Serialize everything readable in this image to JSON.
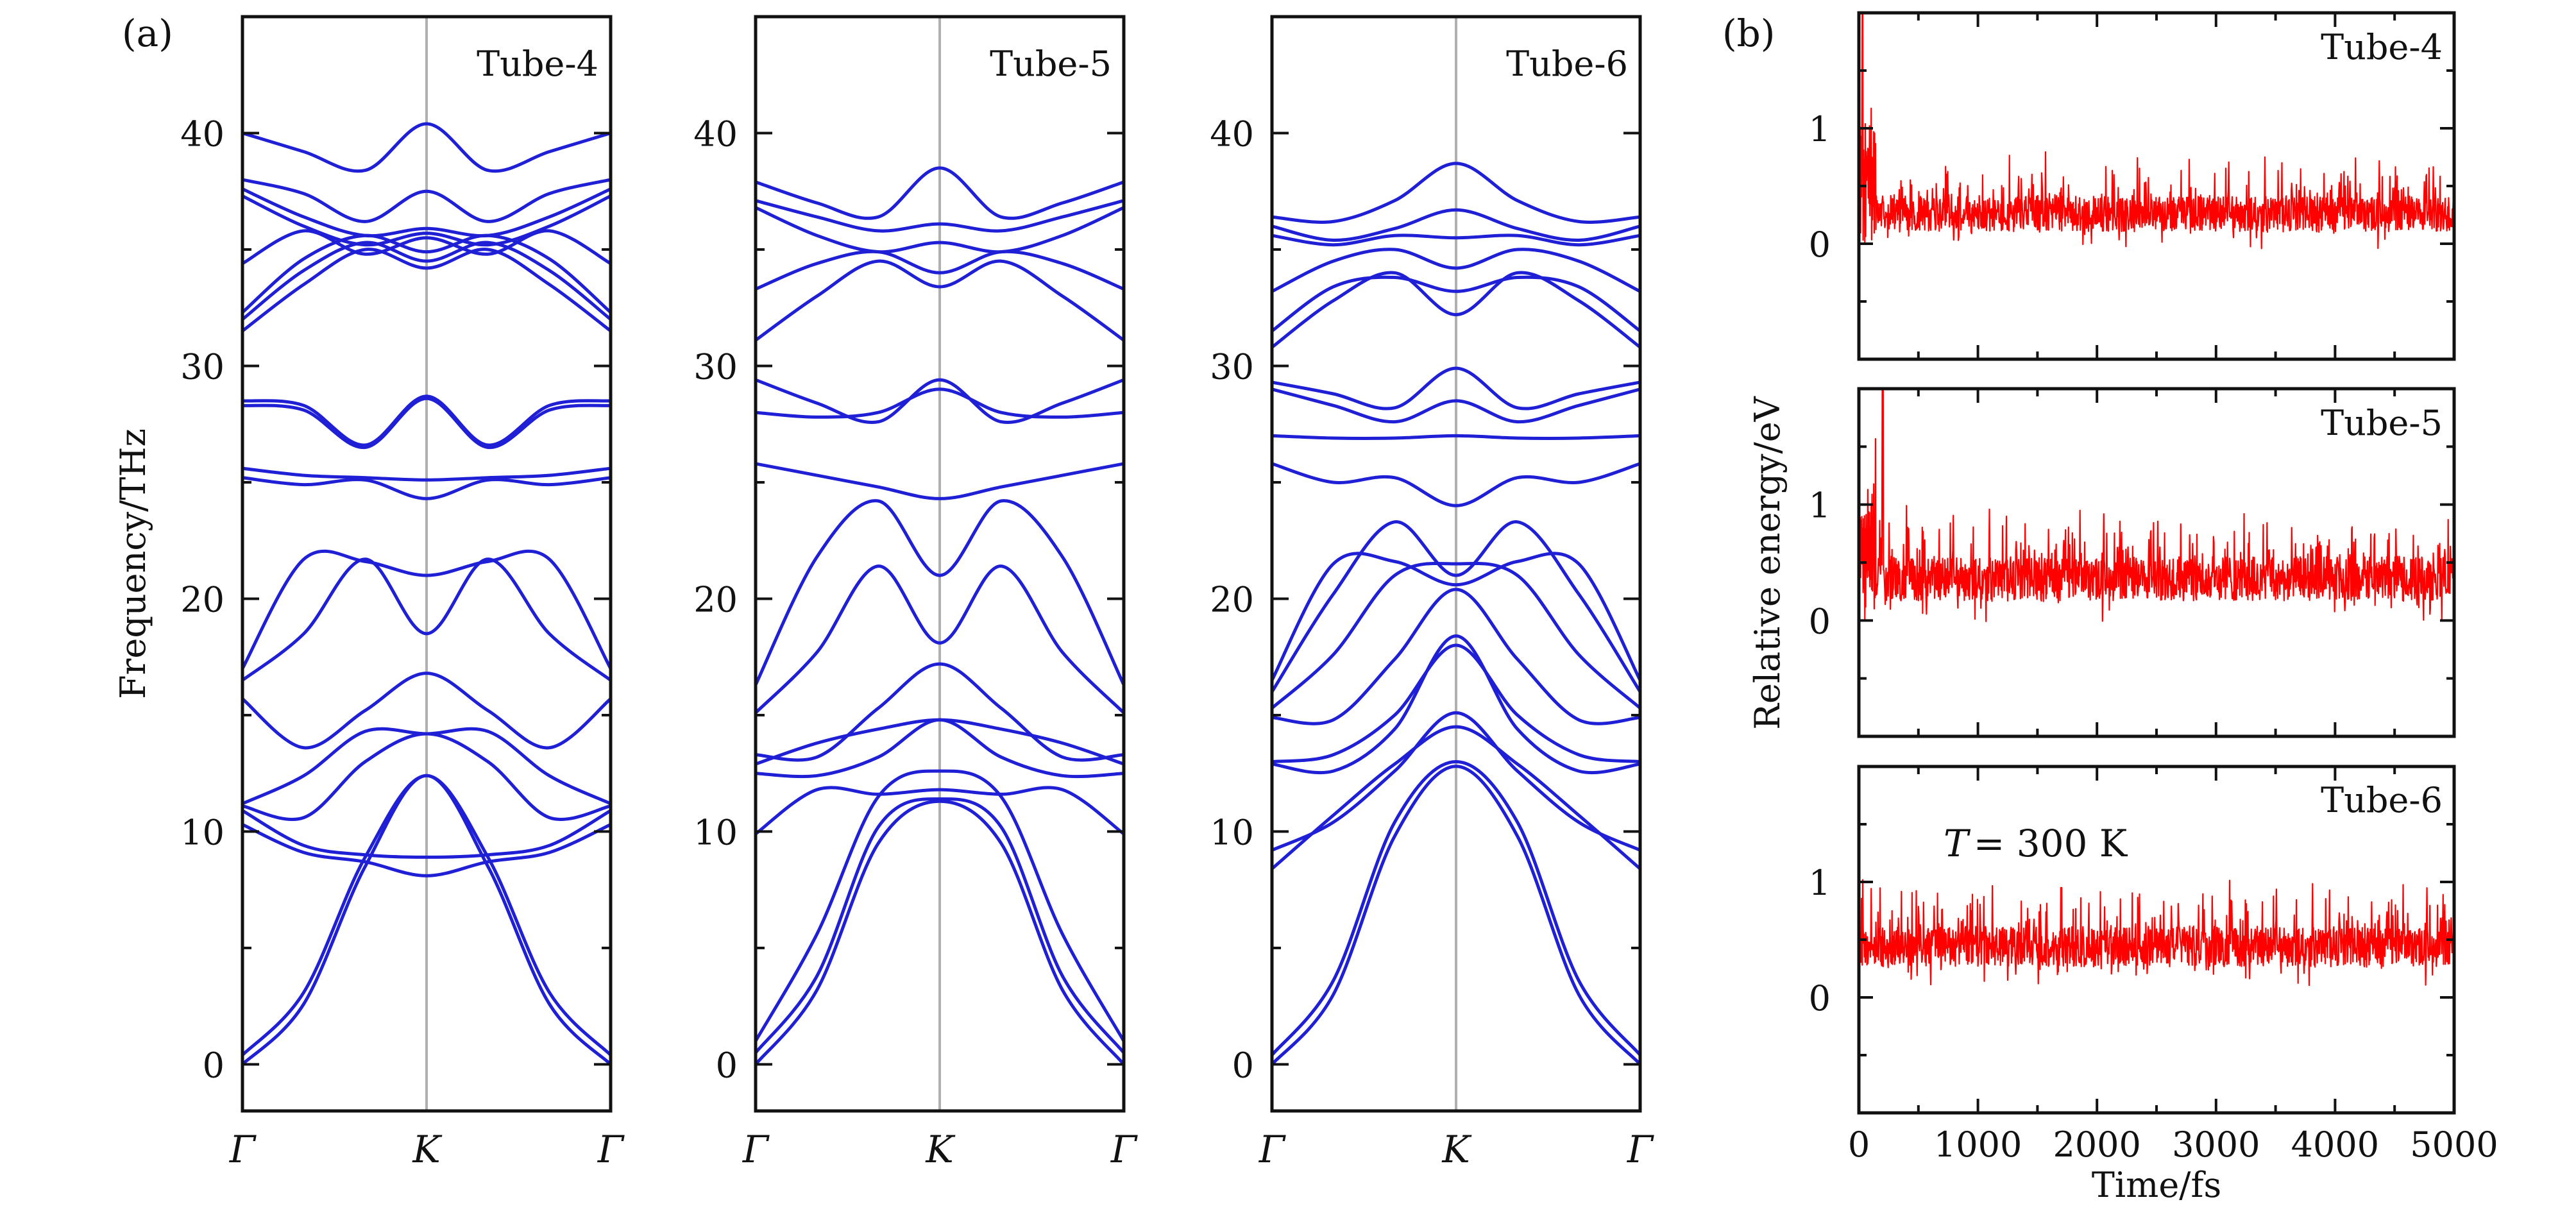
{
  "figure": {
    "panel_a_label": "(a)",
    "panel_b_label": "(b)"
  },
  "colors": {
    "band": "#1f1fd6",
    "energy": "#ff0000",
    "k_marker_line": "#b0b0b0",
    "axis": "#111111"
  },
  "chart_data": [
    {
      "type": "line",
      "id": "tube-4-bands",
      "title": "Tube-4",
      "ylabel": "Frequency/THz",
      "x_tick_labels": [
        "Γ",
        "K",
        "Γ"
      ],
      "ylim": [
        -2,
        45
      ],
      "y_ticks": [
        0,
        10,
        20,
        30,
        40
      ],
      "bands": [
        [
          0.0,
          2.6,
          8.5,
          12.4,
          8.5,
          2.6,
          0.0
        ],
        [
          0.4,
          3.1,
          8.9,
          12.4,
          8.9,
          3.1,
          0.4
        ],
        [
          10.3,
          9.1,
          8.7,
          8.1,
          8.7,
          9.1,
          10.3
        ],
        [
          10.9,
          9.4,
          9.0,
          8.9,
          9.0,
          9.4,
          10.9
        ],
        [
          11.1,
          10.6,
          13.0,
          14.2,
          13.0,
          10.6,
          11.1
        ],
        [
          11.2,
          12.4,
          14.3,
          14.2,
          14.3,
          12.4,
          11.2
        ],
        [
          15.7,
          13.6,
          15.2,
          16.8,
          15.2,
          13.6,
          15.7
        ],
        [
          16.5,
          18.5,
          21.7,
          18.5,
          21.7,
          18.5,
          16.5
        ],
        [
          17.0,
          21.7,
          21.6,
          21.0,
          21.6,
          21.7,
          17.0
        ],
        [
          25.2,
          24.9,
          25.1,
          24.3,
          25.1,
          24.9,
          25.2
        ],
        [
          25.6,
          25.3,
          25.2,
          25.1,
          25.2,
          25.3,
          25.6
        ],
        [
          28.3,
          28.1,
          26.5,
          28.6,
          26.5,
          28.1,
          28.3
        ],
        [
          28.5,
          28.3,
          26.6,
          28.7,
          26.6,
          28.3,
          28.5
        ],
        [
          31.5,
          33.5,
          35.0,
          34.2,
          35.0,
          33.5,
          31.5
        ],
        [
          32.0,
          34.1,
          35.3,
          34.5,
          35.3,
          34.1,
          32.0
        ],
        [
          32.3,
          34.6,
          35.6,
          34.9,
          35.6,
          34.6,
          32.3
        ],
        [
          34.4,
          35.8,
          34.8,
          35.5,
          34.8,
          35.8,
          34.4
        ],
        [
          37.3,
          36.0,
          35.2,
          35.7,
          35.2,
          36.0,
          37.3
        ],
        [
          37.6,
          36.4,
          35.6,
          35.9,
          35.6,
          36.4,
          37.6
        ],
        [
          38.0,
          37.4,
          36.2,
          37.5,
          36.2,
          37.4,
          38.0
        ],
        [
          40.0,
          39.2,
          38.4,
          40.4,
          38.4,
          39.2,
          40.0
        ]
      ]
    },
    {
      "type": "line",
      "id": "tube-5-bands",
      "title": "Tube-5",
      "x_tick_labels": [
        "Γ",
        "K",
        "Γ"
      ],
      "ylim": [
        -2,
        45
      ],
      "y_ticks": [
        0,
        10,
        20,
        30,
        40
      ],
      "bands": [
        [
          0.0,
          3.2,
          9.5,
          11.3,
          9.5,
          3.2,
          0.0
        ],
        [
          0.5,
          3.8,
          10.2,
          11.4,
          10.2,
          3.8,
          0.5
        ],
        [
          1.0,
          5.6,
          11.5,
          12.6,
          11.5,
          5.6,
          1.0
        ],
        [
          9.9,
          11.8,
          11.6,
          11.8,
          11.6,
          11.8,
          9.9
        ],
        [
          12.5,
          12.4,
          13.2,
          14.8,
          13.2,
          12.4,
          12.5
        ],
        [
          12.9,
          13.8,
          14.4,
          14.8,
          14.4,
          13.8,
          12.9
        ],
        [
          13.3,
          13.2,
          15.3,
          17.2,
          15.3,
          13.2,
          13.3
        ],
        [
          15.1,
          17.7,
          21.4,
          18.1,
          21.4,
          17.7,
          15.1
        ],
        [
          16.3,
          21.8,
          24.2,
          21.0,
          24.2,
          21.8,
          16.3
        ],
        [
          25.8,
          25.3,
          24.8,
          24.3,
          24.8,
          25.3,
          25.8
        ],
        [
          28.0,
          27.8,
          28.0,
          29.0,
          28.0,
          27.8,
          28.0
        ],
        [
          29.4,
          28.4,
          27.6,
          29.4,
          27.6,
          28.4,
          29.4
        ],
        [
          31.1,
          33.0,
          34.5,
          33.4,
          34.5,
          33.0,
          31.1
        ],
        [
          33.3,
          34.4,
          34.9,
          34.0,
          34.9,
          34.4,
          33.3
        ],
        [
          36.8,
          35.6,
          34.9,
          35.3,
          34.9,
          35.6,
          36.8
        ],
        [
          37.1,
          36.4,
          35.8,
          36.1,
          35.8,
          36.4,
          37.1
        ],
        [
          37.9,
          37.0,
          36.4,
          38.5,
          36.4,
          37.0,
          37.9
        ]
      ]
    },
    {
      "type": "line",
      "id": "tube-6-bands",
      "title": "Tube-6",
      "x_tick_labels": [
        "Γ",
        "K",
        "Γ"
      ],
      "ylim": [
        -2,
        45
      ],
      "y_ticks": [
        0,
        10,
        20,
        30,
        40
      ],
      "bands": [
        [
          0.0,
          3.0,
          9.8,
          12.8,
          9.8,
          3.0,
          0.0
        ],
        [
          0.4,
          3.6,
          10.4,
          13.0,
          10.4,
          3.6,
          0.4
        ],
        [
          8.4,
          10.7,
          12.9,
          14.5,
          12.9,
          10.7,
          8.4
        ],
        [
          9.2,
          10.4,
          12.6,
          15.1,
          12.6,
          10.4,
          9.2
        ],
        [
          12.9,
          12.6,
          14.4,
          18.4,
          14.4,
          12.6,
          12.9
        ],
        [
          13.0,
          13.3,
          15.0,
          18.0,
          15.0,
          13.3,
          13.0
        ],
        [
          14.9,
          14.8,
          17.4,
          20.4,
          17.4,
          14.8,
          14.9
        ],
        [
          15.3,
          17.6,
          21.0,
          21.5,
          21.0,
          17.6,
          15.3
        ],
        [
          16.0,
          20.2,
          23.3,
          21.0,
          23.3,
          20.2,
          16.0
        ],
        [
          16.5,
          21.5,
          21.6,
          20.6,
          21.6,
          21.5,
          16.5
        ],
        [
          25.8,
          25.0,
          25.2,
          24.0,
          25.2,
          25.0,
          25.8
        ],
        [
          27.0,
          26.9,
          26.9,
          27.0,
          26.9,
          26.9,
          27.0
        ],
        [
          29.0,
          28.3,
          27.6,
          28.5,
          27.6,
          28.3,
          29.0
        ],
        [
          29.3,
          28.8,
          28.2,
          29.9,
          28.2,
          28.8,
          29.3
        ],
        [
          30.8,
          32.8,
          34.0,
          32.2,
          34.0,
          32.8,
          30.8
        ],
        [
          31.5,
          33.4,
          33.8,
          33.2,
          33.8,
          33.4,
          31.5
        ],
        [
          33.2,
          34.5,
          35.0,
          34.2,
          35.0,
          34.5,
          33.2
        ],
        [
          35.6,
          35.2,
          35.6,
          35.5,
          35.6,
          35.2,
          35.6
        ],
        [
          36.0,
          35.4,
          35.9,
          36.7,
          35.9,
          35.4,
          36.0
        ],
        [
          36.4,
          36.2,
          37.1,
          38.7,
          37.1,
          36.2,
          36.4
        ]
      ]
    },
    {
      "type": "line",
      "id": "tube-4-energy",
      "title": "Tube-4",
      "xlim": [
        0,
        5000
      ],
      "ylim": [
        -1,
        2
      ],
      "y_ticks": [
        0,
        1
      ],
      "series": [
        {
          "name": "Relative energy",
          "baseline": 0.26,
          "amplitude": 0.45,
          "spike_time": 30,
          "spike_height": 2.0
        }
      ]
    },
    {
      "type": "line",
      "id": "tube-5-energy",
      "title": "Tube-5",
      "ylabel": "Relative energy/eV",
      "xlim": [
        0,
        5000
      ],
      "ylim": [
        -1,
        2
      ],
      "y_ticks": [
        0,
        1
      ],
      "series": [
        {
          "name": "Relative energy",
          "baseline": 0.36,
          "amplitude": 0.55,
          "spike_time": 200,
          "spike_height": 2.0
        }
      ]
    },
    {
      "type": "line",
      "id": "tube-6-energy",
      "title": "Tube-6",
      "annotation_symbol": "T",
      "annotation_value": "= 300 K",
      "xlabel": "Time/fs",
      "xlim": [
        0,
        5000
      ],
      "x_ticks": [
        0,
        1000,
        2000,
        3000,
        4000,
        5000
      ],
      "ylim": [
        -1,
        2
      ],
      "y_ticks": [
        0,
        1
      ],
      "series": [
        {
          "name": "Relative energy",
          "baseline": 0.44,
          "amplitude": 0.5,
          "spike_time": 1700,
          "spike_height": 0.95
        }
      ]
    }
  ]
}
